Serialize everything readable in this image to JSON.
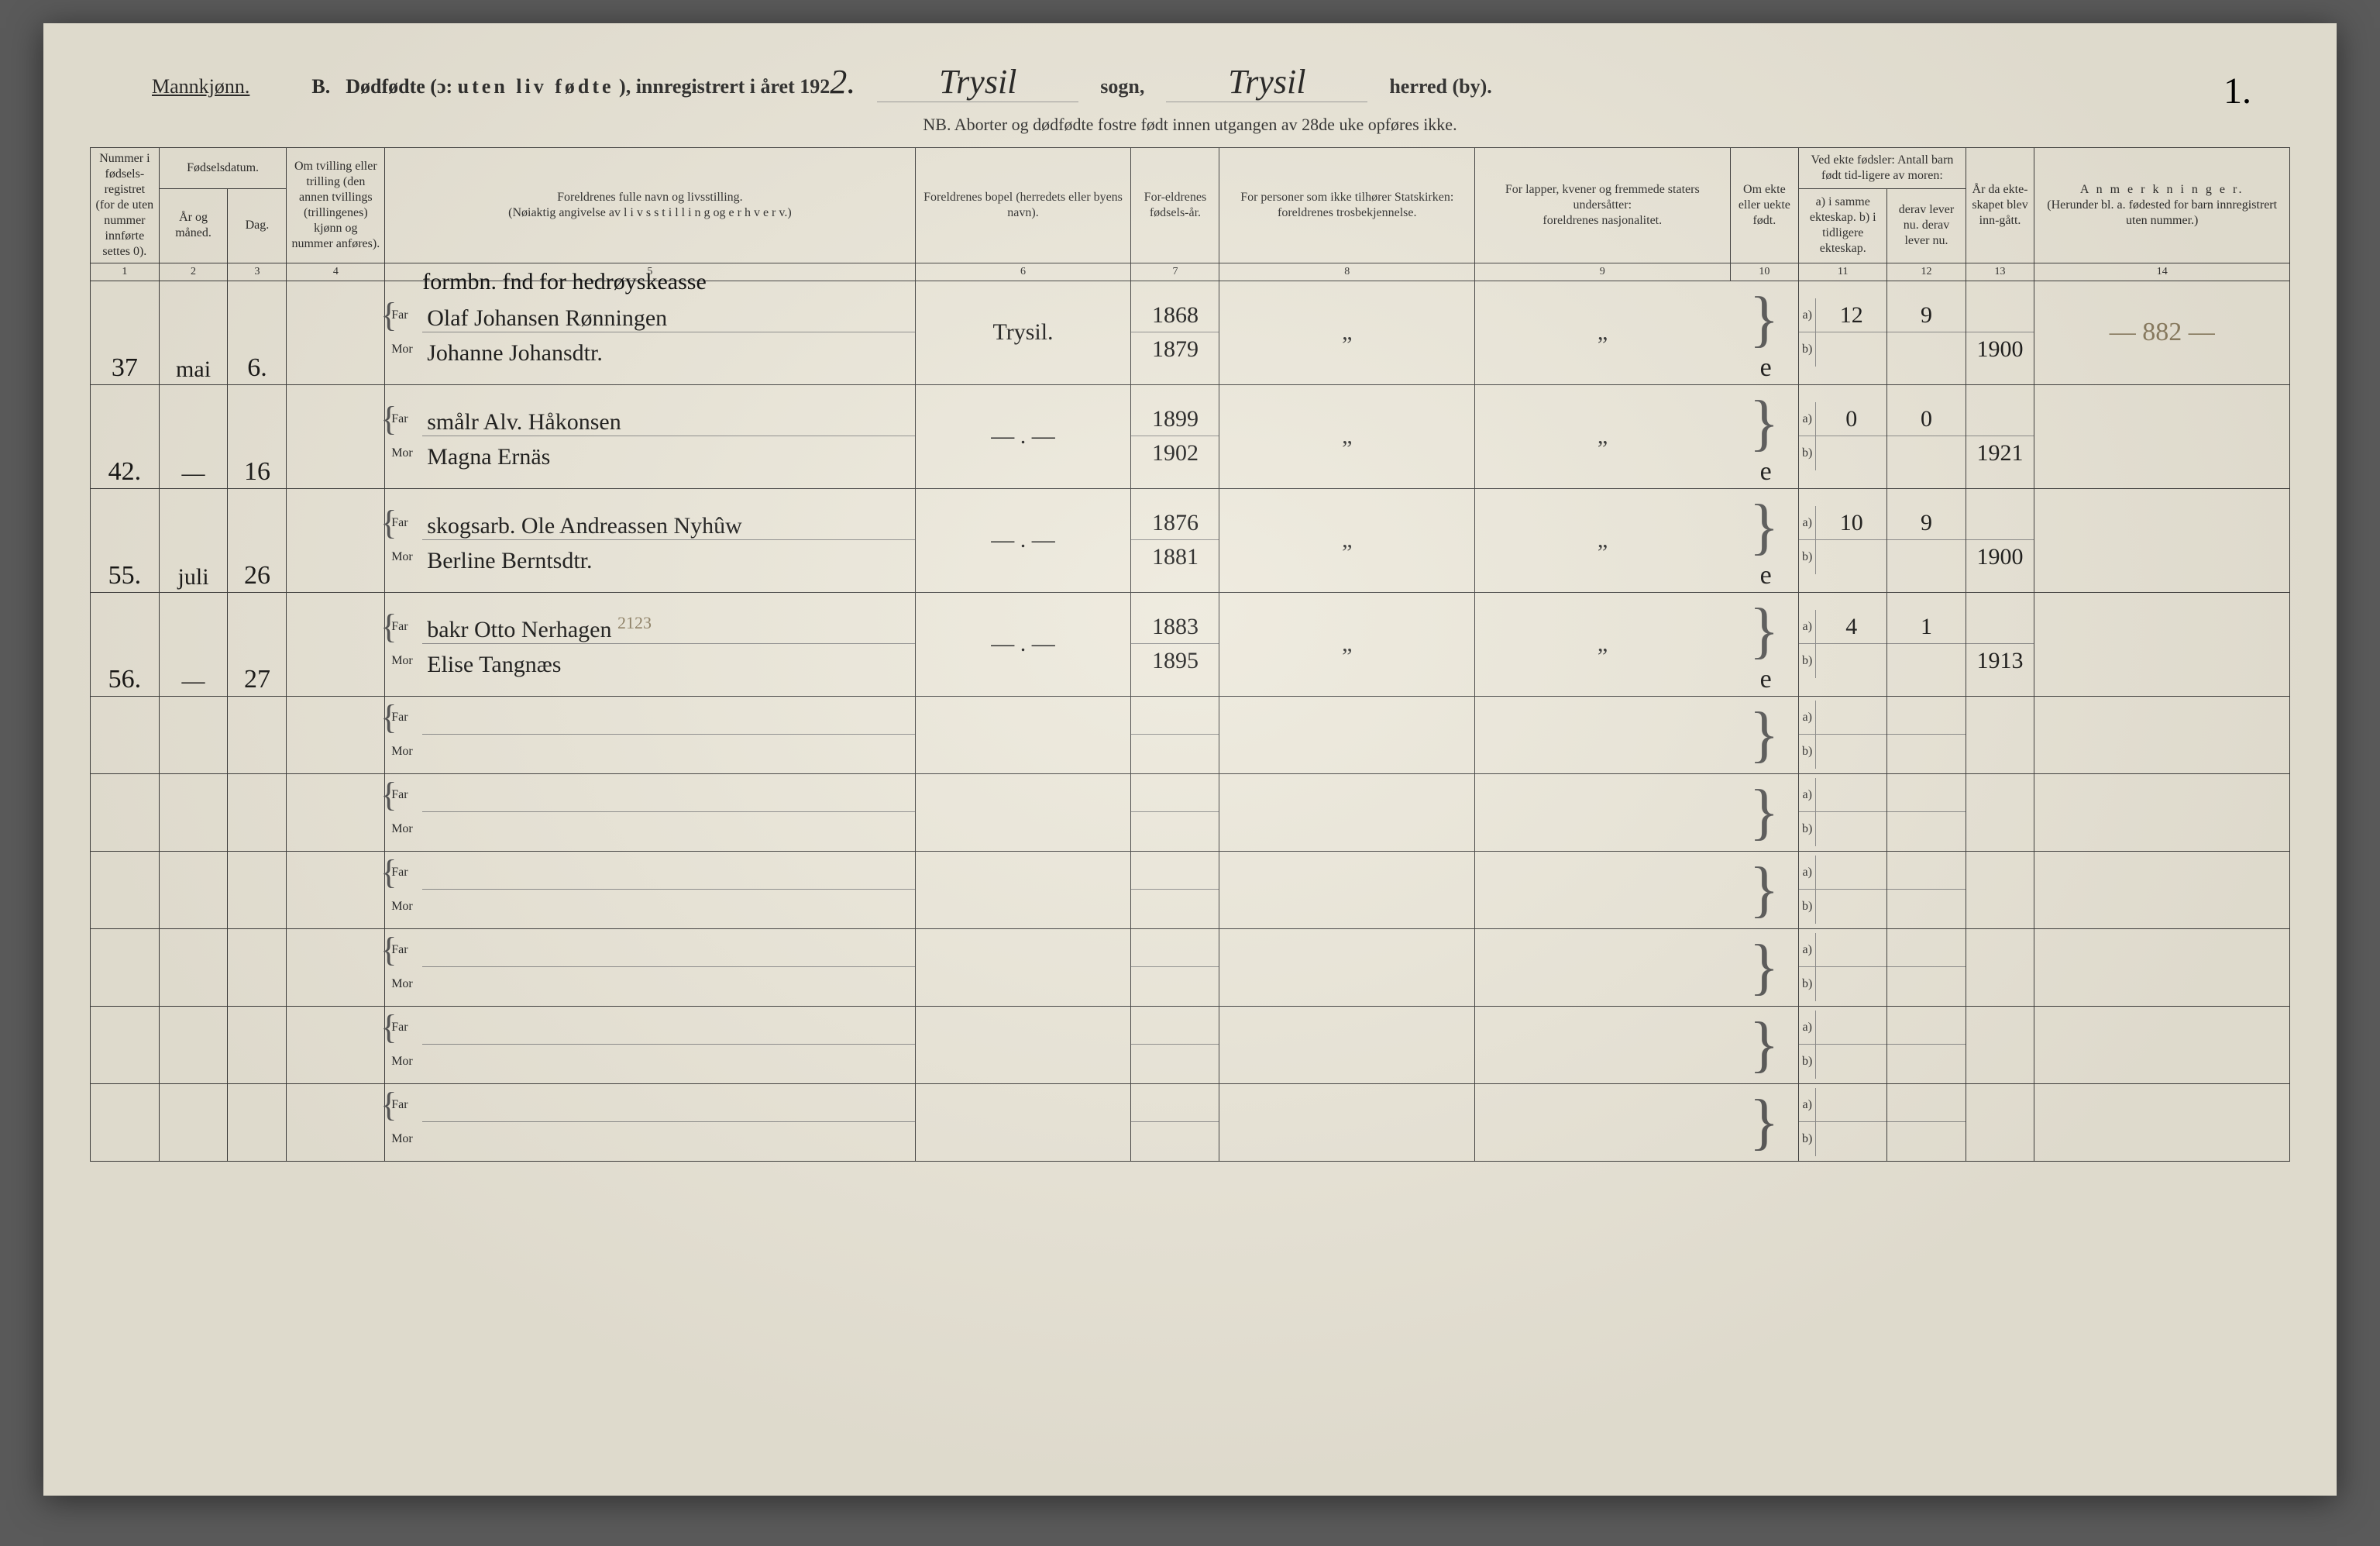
{
  "header": {
    "gender": "Mannkjønn.",
    "section_letter": "B.",
    "title_prefix": "Dødfødte (ɔ:",
    "title_spaced": "uten liv fødte",
    "title_suffix": "), innregistrert i året 192",
    "year_suffix_hw": "2.",
    "sogn_hw": "Trysil",
    "sogn_label": "sogn,",
    "herred_hw": "Trysil",
    "herred_label": "herred (by).",
    "page_number_hw": "1.",
    "nb": "NB.  Aborter og dødfødte fostre født innen utgangen av 28de uke opføres ikke."
  },
  "columns": {
    "c1": "Nummer i fødsels-registret (for de uten nummer innførte settes 0).",
    "c2_top": "Fødselsdatum.",
    "c2a": "År og måned.",
    "c2b": "Dag.",
    "c4": "Om tvilling eller trilling (den annen tvillings (trillingenes) kjønn og nummer anføres).",
    "c5a": "Foreldrenes fulle navn og livsstilling.",
    "c5b": "(Nøiaktig angivelse av  l i v s s t i l l i n g  og  e r h v e r v.)",
    "c6": "Foreldrenes bopel (herredets eller byens navn).",
    "c7": "For-eldrenes fødsels-år.",
    "c8a": "For personer som ikke tilhører Statskirken:",
    "c8b": "foreldrenes trosbekjennelse.",
    "c9a": "For lapper, kvener og fremmede staters undersåtter:",
    "c9b": "foreldrenes nasjonalitet.",
    "c10": "Om ekte eller uekte født.",
    "c11_12_top": "Ved ekte fødsler: Antall barn født tid-ligere av moren:",
    "c11": "a) i samme ekteskap. b) i tidligere ekteskap.",
    "c12": "derav lever nu. derav lever nu.",
    "c13": "År da ekte-skapet blev inn-gått.",
    "c14a": "A n m e r k n i n g e r.",
    "c14b": "(Herunder bl. a. fødested for barn innregistrert uten nummer.)",
    "nums": [
      "1",
      "2",
      "3",
      "4",
      "5",
      "6",
      "7",
      "8",
      "9",
      "10",
      "11",
      "12",
      "13",
      "14"
    ],
    "far": "Far",
    "mor": "Mor",
    "a": "a)",
    "b": "b)"
  },
  "rows": [
    {
      "num": "37",
      "month": "mai",
      "day": "6.",
      "twin": "",
      "extra_top": "formbn. fnd for hedrøyskeasse",
      "far": "Olaf Johansen Rønningen",
      "mor": "Johanne Johansdtr.",
      "bopel": "Trysil.",
      "far_year": "1868",
      "mor_year": "1879",
      "c8": "„",
      "c9": "„",
      "ekte": "e",
      "a_val": "12",
      "a_lever": "9",
      "b_val": "",
      "b_lever": "",
      "aar": "1900",
      "anm": "— 882 —"
    },
    {
      "num": "42.",
      "month": "—",
      "day": "16",
      "twin": "",
      "far": "smålr Alv. Håkonsen",
      "mor": "Magna Ernäs",
      "bopel": "— . —",
      "far_year": "1899",
      "mor_year": "1902",
      "c8": "„",
      "c9": "„",
      "ekte": "e",
      "a_val": "0",
      "a_lever": "0",
      "b_val": "",
      "b_lever": "",
      "aar": "1921",
      "anm": ""
    },
    {
      "num": "55.",
      "month": "juli",
      "day": "26",
      "twin": "",
      "far": "skogsarb. Ole Andreassen Nyhûw",
      "mor": "Berline Berntsdtr.",
      "bopel": "— . —",
      "far_year": "1876",
      "mor_year": "1881",
      "c8": "„",
      "c9": "„",
      "ekte": "e",
      "a_val": "10",
      "a_lever": "9",
      "b_val": "",
      "b_lever": "",
      "aar": "1900",
      "anm": ""
    },
    {
      "num": "56.",
      "month": "—",
      "day": "27",
      "twin": "",
      "far": "bakr Otto Nerhagen",
      "far_super": "2123",
      "mor": "Elise Tangnæs",
      "bopel": "— . —",
      "far_year": "1883",
      "mor_year": "1895",
      "c8": "„",
      "c9": "„",
      "ekte": "e",
      "a_val": "4",
      "a_lever": "1",
      "b_val": "",
      "b_lever": "",
      "aar": "1913",
      "anm": ""
    },
    {
      "empty": true
    },
    {
      "empty": true
    },
    {
      "empty": true
    },
    {
      "empty": true
    },
    {
      "empty": true
    },
    {
      "empty": true
    }
  ]
}
